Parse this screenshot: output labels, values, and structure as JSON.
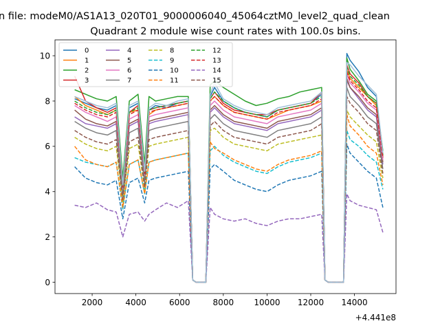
{
  "chart_data": {
    "type": "line",
    "suptitle": "n file: modeM0/AS1A13_020T01_9000006040_45064cztM0_level2_quad_clean",
    "title": "Quadrant 2 module wise count rates with 100.0s bins.",
    "xlabel": "",
    "ylabel": "",
    "x_offset_label": "+4.441e8",
    "xlim": [
      300,
      15900
    ],
    "ylim": [
      -0.5,
      10.7
    ],
    "xticks": [
      2000,
      4000,
      6000,
      8000,
      10000,
      12000,
      14000
    ],
    "xtick_labels": [
      "2000",
      "4000",
      "6000",
      "8000",
      "10000",
      "12000",
      "14000"
    ],
    "yticks": [
      0,
      2,
      4,
      6,
      8,
      10
    ],
    "ytick_labels": [
      "0",
      "2",
      "4",
      "6",
      "8",
      "10"
    ],
    "grid": false,
    "legend_position": "upper-left",
    "legend_columns": 4,
    "x": [
      1200,
      1700,
      2200,
      2700,
      3100,
      3400,
      3700,
      4100,
      4400,
      4600,
      4900,
      5400,
      5900,
      6400,
      6600,
      6750,
      7200,
      7400,
      7600,
      8000,
      8500,
      9000,
      9500,
      10000,
      10500,
      11000,
      11500,
      12000,
      12500,
      12650,
      12800,
      13500,
      13650,
      13800,
      14200,
      14600,
      15000,
      15300
    ],
    "series": [
      {
        "name": "0",
        "color": "#1f77b4",
        "dash": "solid",
        "values": [
          8.1,
          7.9,
          7.7,
          7.6,
          7.8,
          4.2,
          7.7,
          7.9,
          4.8,
          7.6,
          7.8,
          7.7,
          7.9,
          8.0,
          0.1,
          0,
          0,
          8.2,
          8.6,
          8.0,
          7.7,
          7.5,
          7.4,
          7.3,
          7.6,
          7.7,
          7.8,
          7.9,
          8.3,
          0.1,
          0,
          0,
          10.1,
          9.8,
          9.3,
          8.6,
          8.2,
          5.6
        ]
      },
      {
        "name": "1",
        "color": "#ff7f0e",
        "dash": "solid",
        "values": [
          8.2,
          7.8,
          7.6,
          7.4,
          7.6,
          4.3,
          7.5,
          7.6,
          4.9,
          7.4,
          7.6,
          7.7,
          7.8,
          7.9,
          0.1,
          0,
          0,
          8.0,
          8.2,
          7.8,
          7.5,
          7.4,
          7.3,
          7.2,
          7.4,
          7.6,
          7.7,
          7.8,
          8.0,
          0.1,
          0,
          0,
          9.4,
          9.0,
          8.6,
          8.2,
          7.8,
          5.5
        ]
      },
      {
        "name": "2",
        "color": "#2ca02c",
        "dash": "solid",
        "values": [
          8.5,
          8.3,
          8.1,
          8.0,
          8.2,
          4.6,
          8.0,
          8.3,
          5.2,
          8.2,
          8.0,
          8.1,
          8.2,
          8.2,
          0.1,
          0,
          0,
          8.7,
          8.9,
          8.6,
          8.3,
          8.0,
          7.8,
          7.9,
          8.1,
          8.2,
          8.4,
          8.5,
          8.6,
          0.1,
          0,
          0,
          9.9,
          9.4,
          8.9,
          8.3,
          8.0,
          5.8
        ]
      },
      {
        "name": "3",
        "color": "#d62728",
        "dash": "solid",
        "values": [
          9.1,
          8.0,
          7.7,
          7.5,
          7.7,
          4.1,
          7.5,
          7.8,
          4.7,
          7.6,
          7.7,
          7.8,
          7.9,
          8.0,
          0.1,
          0,
          0,
          8.1,
          8.4,
          7.9,
          7.6,
          7.5,
          7.4,
          7.4,
          7.6,
          7.7,
          7.8,
          7.9,
          8.4,
          0.1,
          0,
          0,
          9.6,
          9.2,
          8.8,
          8.2,
          7.9,
          5.5
        ]
      },
      {
        "name": "4",
        "color": "#9467bd",
        "dash": "solid",
        "values": [
          7.3,
          7.0,
          6.9,
          6.8,
          7.0,
          3.9,
          6.9,
          7.1,
          4.5,
          7.0,
          7.1,
          7.2,
          7.3,
          7.4,
          0.1,
          0,
          0,
          7.5,
          7.7,
          7.3,
          7.0,
          6.9,
          6.8,
          6.7,
          7.0,
          7.1,
          7.2,
          7.3,
          7.6,
          0.1,
          0,
          0,
          8.9,
          8.6,
          8.1,
          7.6,
          7.3,
          5.2
        ]
      },
      {
        "name": "5",
        "color": "#8c564b",
        "dash": "solid",
        "values": [
          7.6,
          7.2,
          7.0,
          6.9,
          7.1,
          4.0,
          7.0,
          7.2,
          4.6,
          7.1,
          7.2,
          7.3,
          7.4,
          7.5,
          0.1,
          0,
          0,
          7.6,
          7.8,
          7.4,
          7.1,
          7.0,
          6.9,
          6.8,
          7.1,
          7.2,
          7.3,
          7.4,
          7.7,
          0.1,
          0,
          0,
          9.0,
          8.6,
          8.2,
          7.7,
          7.4,
          5.3
        ]
      },
      {
        "name": "6",
        "color": "#e377c2",
        "dash": "solid",
        "values": [
          7.8,
          7.5,
          7.3,
          7.1,
          7.3,
          4.1,
          7.2,
          7.4,
          4.7,
          7.3,
          7.4,
          7.5,
          7.6,
          7.7,
          0.1,
          0,
          0,
          7.8,
          8.0,
          7.6,
          7.3,
          7.2,
          7.1,
          7.0,
          7.3,
          7.4,
          7.5,
          7.6,
          7.9,
          0.1,
          0,
          0,
          9.2,
          8.8,
          8.4,
          7.9,
          7.6,
          5.4
        ]
      },
      {
        "name": "7",
        "color": "#7f7f7f",
        "dash": "solid",
        "values": [
          7.1,
          6.8,
          6.6,
          6.5,
          6.7,
          3.8,
          6.6,
          6.8,
          4.4,
          6.7,
          6.8,
          6.9,
          7.0,
          7.1,
          0.1,
          0,
          0,
          7.2,
          7.4,
          7.0,
          6.7,
          6.6,
          6.5,
          6.4,
          6.7,
          6.8,
          6.9,
          7.0,
          7.3,
          0.1,
          0,
          0,
          8.6,
          8.2,
          7.8,
          7.3,
          7.0,
          5.0
        ]
      },
      {
        "name": "8",
        "color": "#bcbd22",
        "dash": "dashed",
        "values": [
          6.4,
          6.1,
          5.9,
          5.8,
          6.0,
          3.5,
          5.9,
          6.1,
          4.1,
          6.0,
          6.1,
          6.2,
          6.3,
          6.4,
          0.1,
          0,
          0,
          6.7,
          6.8,
          6.4,
          6.1,
          6.0,
          5.9,
          5.8,
          6.1,
          6.2,
          6.3,
          6.4,
          6.5,
          0.1,
          0,
          0,
          7.6,
          7.3,
          6.9,
          6.5,
          6.2,
          4.6
        ]
      },
      {
        "name": "9",
        "color": "#17becf",
        "dash": "dashed",
        "values": [
          5.5,
          5.3,
          5.2,
          5.1,
          5.3,
          3.2,
          5.2,
          5.4,
          3.9,
          5.3,
          5.4,
          5.5,
          5.6,
          5.7,
          0.1,
          0,
          0,
          5.8,
          6.0,
          5.6,
          5.3,
          5.1,
          4.9,
          4.8,
          5.1,
          5.3,
          5.4,
          5.5,
          5.7,
          0.1,
          0,
          0,
          6.7,
          6.3,
          6.0,
          5.6,
          5.3,
          4.1
        ]
      },
      {
        "name": "10",
        "color": "#1f77b4",
        "dash": "dashed",
        "values": [
          5.1,
          4.6,
          4.4,
          4.3,
          4.5,
          2.8,
          4.4,
          4.6,
          3.5,
          4.5,
          4.6,
          4.7,
          4.8,
          4.9,
          0.1,
          0,
          0,
          5.0,
          5.2,
          4.9,
          4.5,
          4.3,
          4.1,
          4.0,
          4.3,
          4.5,
          4.6,
          4.7,
          4.9,
          0.1,
          0,
          0,
          6.1,
          5.7,
          5.3,
          4.9,
          4.6,
          3.3
        ]
      },
      {
        "name": "11",
        "color": "#ff7f0e",
        "dash": "dashed",
        "values": [
          6.0,
          5.4,
          5.2,
          5.1,
          5.3,
          3.3,
          5.2,
          5.4,
          3.9,
          5.3,
          5.4,
          5.5,
          5.6,
          5.7,
          0.1,
          0,
          0,
          6.2,
          5.9,
          5.7,
          5.4,
          5.2,
          5.0,
          4.9,
          5.2,
          5.4,
          5.5,
          5.6,
          5.8,
          0.1,
          0,
          0,
          7.4,
          6.9,
          6.5,
          6.0,
          5.7,
          4.3
        ]
      },
      {
        "name": "12",
        "color": "#2ca02c",
        "dash": "dashed",
        "values": [
          8.0,
          7.7,
          7.5,
          7.4,
          7.6,
          4.2,
          7.5,
          7.7,
          4.8,
          7.6,
          7.7,
          7.8,
          7.9,
          8.0,
          0.1,
          0,
          0,
          8.1,
          8.4,
          8.0,
          7.7,
          7.5,
          7.4,
          7.3,
          7.6,
          7.7,
          7.8,
          7.9,
          8.2,
          0.1,
          0,
          0,
          9.5,
          9.1,
          8.7,
          8.2,
          7.9,
          5.6
        ]
      },
      {
        "name": "13",
        "color": "#d62728",
        "dash": "dashed",
        "values": [
          7.9,
          7.6,
          7.4,
          7.3,
          7.5,
          4.2,
          7.4,
          7.6,
          4.8,
          7.5,
          7.6,
          7.7,
          7.8,
          7.9,
          0.1,
          0,
          0,
          8.0,
          8.2,
          7.8,
          7.5,
          7.4,
          7.3,
          7.2,
          7.5,
          7.6,
          7.7,
          7.8,
          8.1,
          0.1,
          0,
          0,
          9.3,
          8.9,
          8.5,
          8.0,
          7.7,
          5.5
        ]
      },
      {
        "name": "14",
        "color": "#9467bd",
        "dash": "dashed",
        "values": [
          3.4,
          3.3,
          3.5,
          3.2,
          3.1,
          2.0,
          3.0,
          3.1,
          2.7,
          3.0,
          3.2,
          3.5,
          3.3,
          3.6,
          0.1,
          0,
          0,
          3.3,
          3.0,
          2.8,
          2.7,
          2.8,
          2.6,
          2.5,
          2.7,
          2.8,
          2.8,
          2.9,
          3.0,
          0.1,
          0,
          0,
          3.9,
          3.6,
          3.4,
          3.3,
          3.2,
          2.2
        ]
      },
      {
        "name": "15",
        "color": "#8c564b",
        "dash": "dashed",
        "values": [
          6.7,
          6.4,
          6.2,
          6.1,
          6.3,
          3.6,
          6.2,
          6.4,
          4.2,
          6.3,
          6.4,
          6.5,
          6.6,
          6.7,
          0.1,
          0,
          0,
          6.9,
          7.1,
          6.7,
          6.4,
          6.3,
          6.2,
          6.1,
          6.4,
          6.5,
          6.6,
          6.7,
          7.0,
          0.1,
          0,
          0,
          8.2,
          7.9,
          7.5,
          7.0,
          6.7,
          4.8
        ]
      },
      {
        "name": "",
        "color": "#9ebfd8",
        "dash": "solid",
        "values": [
          8.2,
          8.0,
          7.8,
          7.7,
          7.9,
          4.3,
          7.8,
          8.0,
          4.9,
          7.7,
          7.9,
          7.8,
          8.0,
          8.1,
          0.1,
          0,
          0,
          8.3,
          8.8,
          8.1,
          7.8,
          7.6,
          7.5,
          7.4,
          7.7,
          7.8,
          7.9,
          8.0,
          8.4,
          0.1,
          0,
          0,
          9.7,
          9.6,
          9.1,
          8.7,
          8.3,
          5.7
        ]
      }
    ]
  }
}
